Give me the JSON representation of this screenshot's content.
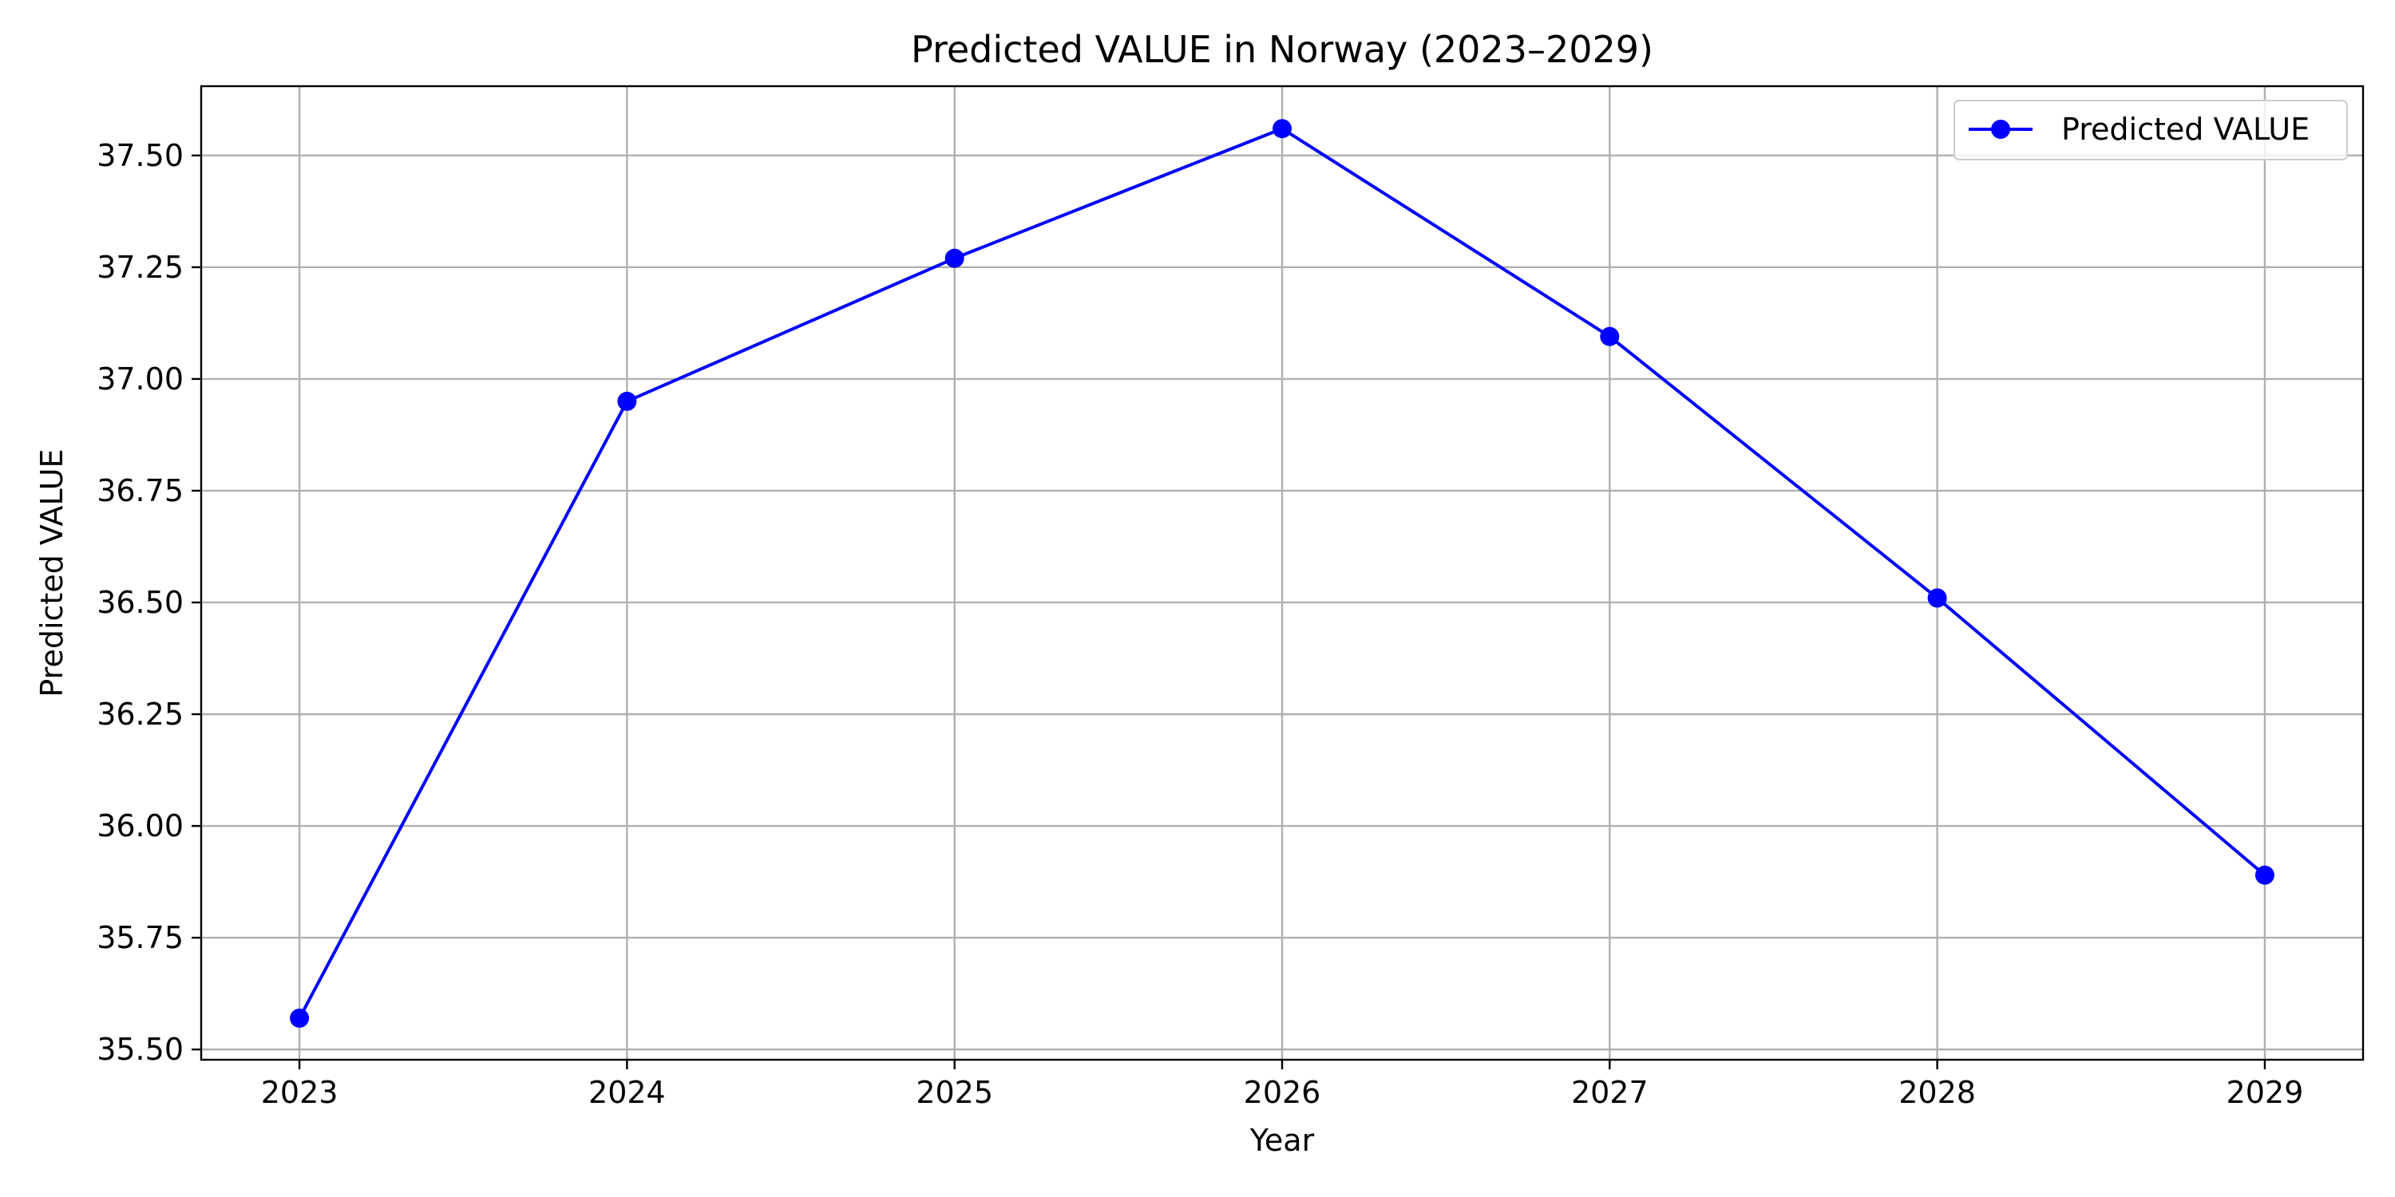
{
  "chart_data": {
    "type": "line",
    "title": "Predicted VALUE in Norway (2023–2029)",
    "xlabel": "Year",
    "ylabel": "Predicted VALUE",
    "x": [
      2023,
      2024,
      2025,
      2026,
      2027,
      2028,
      2029
    ],
    "xlim": [
      2022.7,
      2029.3
    ],
    "ylim": [
      35.477,
      37.655
    ],
    "yticks": [
      35.5,
      35.75,
      36.0,
      36.25,
      36.5,
      36.75,
      37.0,
      37.25,
      37.5
    ],
    "ytick_labels": [
      "35.50",
      "35.75",
      "36.00",
      "36.25",
      "36.50",
      "36.75",
      "37.00",
      "37.25",
      "37.50"
    ],
    "xtick_labels": [
      "2023",
      "2024",
      "2025",
      "2026",
      "2027",
      "2028",
      "2029"
    ],
    "grid": true,
    "legend_position": "top-right",
    "series": [
      {
        "name": "Predicted VALUE",
        "color": "#0000ff",
        "marker": "circle",
        "values": [
          35.57,
          36.95,
          37.27,
          37.56,
          37.095,
          36.51,
          35.89
        ]
      }
    ]
  }
}
